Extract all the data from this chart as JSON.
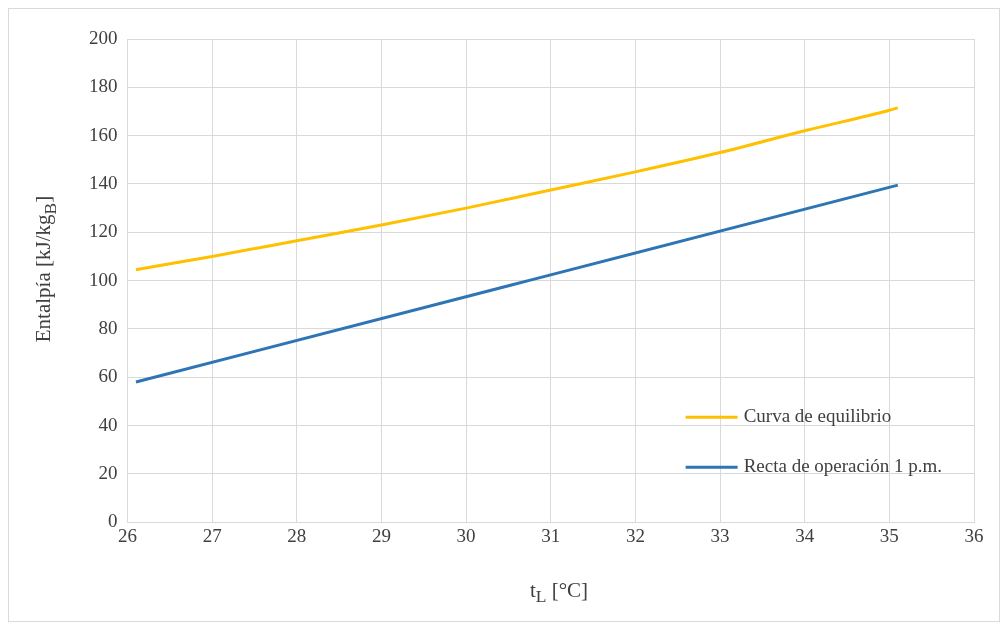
{
  "chart_data": {
    "type": "line",
    "xlabel": "t$_{L}$ [°C]",
    "ylabel": "Entalpía [kJ/kg$_{B}$]",
    "xlim": [
      26,
      36
    ],
    "xticks": [
      26,
      27,
      28,
      29,
      30,
      31,
      32,
      33,
      34,
      35,
      36
    ],
    "ylim": [
      0,
      200
    ],
    "yticks": [
      0,
      20,
      40,
      60,
      80,
      100,
      120,
      140,
      160,
      180,
      200
    ],
    "grid": true,
    "legend": "bottom right",
    "marker": "none",
    "line_style": "solid",
    "series": [
      {
        "name": "Curva de equilibrio",
        "color": "#ffc000",
        "x": [
          26.1,
          27,
          28,
          29,
          30,
          31,
          32,
          33,
          34,
          35,
          35.1
        ],
        "values": [
          104.5,
          110,
          116.5,
          123,
          130,
          137.5,
          145,
          153,
          162,
          170.5,
          171.5
        ]
      },
      {
        "name": "Recta de operación 1 p.m.",
        "color": "#2e75b6",
        "x": [
          26.1,
          35.1
        ],
        "values": [
          58,
          139.5
        ]
      }
    ]
  }
}
